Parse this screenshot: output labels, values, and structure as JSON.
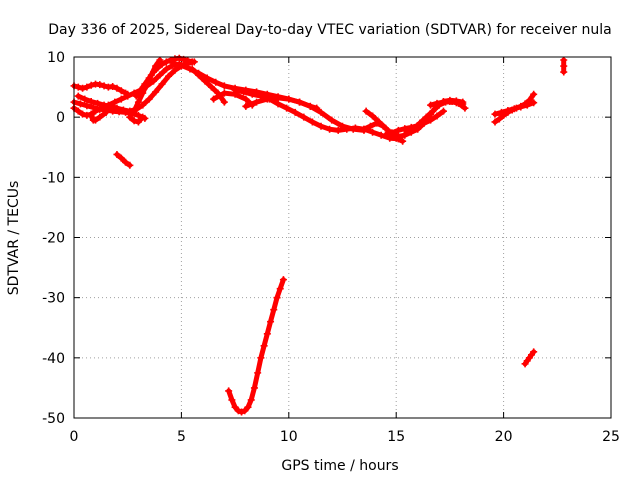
{
  "chart_data": {
    "type": "scatter",
    "title": "Day 336 of 2025, Sidereal Day-to-day VTEC variation (SDTVAR) for receiver nula",
    "xlabel": "GPS time / hours",
    "ylabel": "SDTVAR / TECUs",
    "xlim": [
      0,
      25
    ],
    "ylim": [
      -50,
      10
    ],
    "xticks": [
      0,
      5,
      10,
      15,
      20,
      25
    ],
    "yticks": [
      -50,
      -40,
      -30,
      -20,
      -10,
      0,
      10
    ],
    "grid": true,
    "legend": "none",
    "marker": "plus",
    "color": "#ff0000",
    "series": [
      {
        "name": "track-1",
        "x": [
          0.0,
          0.2,
          0.4,
          0.6,
          0.8,
          1.0,
          1.2,
          1.4,
          1.6,
          1.8,
          2.0,
          2.2,
          2.4,
          2.5
        ],
        "y": [
          5.2,
          5.0,
          4.8,
          5.0,
          5.3,
          5.5,
          5.4,
          5.2,
          5.0,
          5.1,
          4.8,
          4.4,
          4.0,
          3.8
        ]
      },
      {
        "name": "track-2",
        "x": [
          0.0,
          0.2,
          0.4,
          0.6,
          0.8,
          1.0,
          1.3,
          1.6,
          1.9,
          2.2,
          2.5,
          2.8,
          3.1,
          3.4,
          3.7,
          4.0,
          4.3,
          4.6,
          4.9,
          5.2
        ],
        "y": [
          1.5,
          1.0,
          0.5,
          0.3,
          0.5,
          1.0,
          1.5,
          2.0,
          2.5,
          3.0,
          3.5,
          4.0,
          4.5,
          5.2,
          6.0,
          7.0,
          8.0,
          8.6,
          8.8,
          8.5
        ]
      },
      {
        "name": "track-3",
        "x": [
          0.0,
          0.3,
          0.6,
          0.9,
          1.2,
          1.5,
          1.8,
          2.1,
          2.4,
          2.7,
          3.0,
          3.3
        ],
        "y": [
          2.5,
          2.2,
          1.9,
          1.6,
          1.3,
          1.2,
          1.0,
          0.9,
          0.8,
          0.6,
          0.3,
          -0.2
        ]
      },
      {
        "name": "track-4",
        "x": [
          0.2,
          0.5,
          0.8,
          1.1,
          1.4,
          1.7,
          2.0,
          2.3,
          2.6,
          2.9,
          3.2,
          3.5,
          3.8,
          4.1,
          4.4,
          4.7,
          5.0,
          5.3,
          5.6
        ],
        "y": [
          3.5,
          3.0,
          2.6,
          2.3,
          2.0,
          1.8,
          1.5,
          1.2,
          1.0,
          1.3,
          2.0,
          3.0,
          4.2,
          5.5,
          6.8,
          7.8,
          8.5,
          9.0,
          9.2
        ]
      },
      {
        "name": "track-5",
        "x": [
          0.8,
          0.9,
          1.0,
          1.2,
          1.5
        ],
        "y": [
          0.2,
          -0.5,
          -0.5,
          0.0,
          0.8
        ]
      },
      {
        "name": "track-6",
        "x": [
          2.9,
          3.1,
          3.3,
          3.5,
          3.7,
          3.9,
          4.1,
          4.3,
          4.5,
          4.7,
          4.9,
          5.1,
          5.3,
          5.5
        ],
        "y": [
          3.5,
          4.5,
          5.5,
          6.5,
          7.5,
          8.2,
          8.8,
          9.2,
          9.5,
          9.7,
          9.8,
          9.6,
          9.4,
          9.2
        ]
      },
      {
        "name": "track-7",
        "x": [
          2.8,
          3.0,
          3.2,
          3.4,
          3.6,
          3.8,
          4.0
        ],
        "y": [
          1.0,
          2.5,
          4.0,
          5.5,
          7.0,
          8.5,
          9.5
        ]
      },
      {
        "name": "track-8",
        "x": [
          4.6,
          5.0,
          5.4,
          5.8,
          6.2,
          6.6,
          7.0,
          7.5,
          8.0,
          8.5,
          9.0,
          9.5,
          10.0,
          10.5,
          11.0,
          11.3
        ],
        "y": [
          9.0,
          8.6,
          8.0,
          7.3,
          6.5,
          5.8,
          5.2,
          4.8,
          4.5,
          4.2,
          3.8,
          3.4,
          3.0,
          2.5,
          1.8,
          1.5
        ]
      },
      {
        "name": "track-9",
        "x": [
          5.5,
          5.8,
          6.1,
          6.4,
          6.7,
          7.0
        ],
        "y": [
          8.0,
          7.0,
          6.0,
          5.0,
          4.0,
          2.5
        ]
      },
      {
        "name": "track-10",
        "x": [
          8.0,
          8.5,
          9.0,
          9.5,
          10.0,
          10.5,
          11.0,
          11.5,
          12.0,
          12.5,
          13.0,
          13.5
        ],
        "y": [
          1.8,
          2.5,
          3.0,
          3.2,
          3.0,
          2.5,
          1.8,
          0.8,
          -0.5,
          -1.5,
          -2.0,
          -2.2
        ]
      },
      {
        "name": "track-11",
        "x": [
          7.5,
          7.9,
          8.3,
          8.7,
          9.1,
          9.5,
          9.9,
          10.3,
          10.7,
          11.1,
          11.5,
          11.9,
          12.3,
          12.7,
          13.1,
          13.5,
          13.9,
          14.3,
          14.7,
          15.1
        ],
        "y": [
          4.5,
          4.2,
          3.8,
          3.5,
          3.0,
          2.2,
          1.5,
          0.8,
          0.0,
          -0.8,
          -1.5,
          -2.0,
          -2.2,
          -2.0,
          -1.8,
          -2.0,
          -2.5,
          -3.0,
          -3.5,
          -3.6
        ]
      },
      {
        "name": "track-12",
        "x": [
          6.5,
          7.0,
          7.5,
          8.0,
          8.3
        ],
        "y": [
          3.0,
          4.0,
          3.8,
          3.0,
          2.0
        ]
      },
      {
        "name": "track-13",
        "x": [
          13.5,
          13.8,
          14.1,
          14.4,
          14.7,
          15.0,
          15.3
        ],
        "y": [
          -2.0,
          -1.5,
          -1.0,
          -1.5,
          -2.5,
          -3.5,
          -4.0
        ]
      },
      {
        "name": "track-14",
        "x": [
          13.6,
          13.9,
          14.2,
          14.5,
          14.8,
          15.1,
          15.4,
          15.7,
          16.0,
          16.3,
          16.6,
          16.9,
          17.2,
          17.5,
          17.8,
          18.1
        ],
        "y": [
          1.0,
          0.2,
          -0.8,
          -1.8,
          -2.8,
          -3.2,
          -3.0,
          -2.5,
          -2.0,
          -1.0,
          0.5,
          1.8,
          2.6,
          2.8,
          2.7,
          2.5
        ]
      },
      {
        "name": "track-15",
        "x": [
          14.5,
          14.8,
          15.1,
          15.4,
          15.7,
          16.0,
          16.3,
          16.6,
          16.9,
          17.2
        ],
        "y": [
          -3.0,
          -2.6,
          -2.2,
          -1.9,
          -1.7,
          -1.4,
          -1.0,
          -0.5,
          0.2,
          1.0
        ]
      },
      {
        "name": "track-16",
        "x": [
          15.5,
          15.8,
          16.1,
          16.4,
          16.7,
          17.0,
          17.3,
          17.6,
          17.9,
          18.2
        ],
        "y": [
          -2.5,
          -2.0,
          -1.0,
          0.0,
          1.0,
          2.0,
          2.5,
          2.6,
          2.3,
          1.5
        ]
      },
      {
        "name": "track-17",
        "x": [
          16.6,
          16.9,
          17.2,
          17.5,
          17.8,
          18.1
        ],
        "y": [
          2.0,
          2.3,
          2.5,
          2.6,
          2.4,
          2.2
        ]
      },
      {
        "name": "track-18",
        "x": [
          19.6,
          19.8,
          20.0,
          20.2,
          20.4,
          20.6,
          20.8,
          21.0,
          21.2,
          21.4
        ],
        "y": [
          -0.8,
          -0.3,
          0.3,
          0.8,
          1.2,
          1.5,
          1.8,
          2.2,
          2.8,
          3.8
        ]
      },
      {
        "name": "track-19",
        "x": [
          19.6,
          19.9,
          20.2,
          20.5,
          20.8,
          21.1,
          21.4
        ],
        "y": [
          0.5,
          0.8,
          1.1,
          1.4,
          1.7,
          2.0,
          2.4
        ]
      },
      {
        "name": "track-20",
        "x": [
          2.0,
          2.2,
          2.4,
          2.6
        ],
        "y": [
          -6.2,
          -6.8,
          -7.5,
          -8.0
        ]
      },
      {
        "name": "track-21",
        "x": [
          7.2,
          7.35,
          7.5,
          7.65,
          7.8,
          7.95,
          8.1,
          8.25,
          8.4,
          8.55,
          8.7,
          8.85,
          9.0,
          9.15,
          9.3,
          9.45,
          9.6,
          9.75
        ],
        "y": [
          -45.5,
          -47.0,
          -48.2,
          -48.8,
          -49.0,
          -48.8,
          -48.2,
          -47.0,
          -45.0,
          -42.5,
          -40.0,
          -38.0,
          -36.0,
          -34.0,
          -32.0,
          -30.0,
          -28.5,
          -27.0
        ]
      },
      {
        "name": "track-22",
        "x": [
          21.0,
          21.1,
          21.2,
          21.3,
          21.4
        ],
        "y": [
          -41.0,
          -40.5,
          -40.0,
          -39.5,
          -39.0
        ]
      },
      {
        "name": "track-23",
        "x": [
          22.8,
          22.8,
          22.8
        ],
        "y": [
          9.5,
          8.5,
          7.5
        ]
      },
      {
        "name": "track-24",
        "x": [
          2.6,
          2.8,
          3.0,
          3.2
        ],
        "y": [
          0.0,
          -0.6,
          -0.8,
          0.0
        ]
      }
    ]
  }
}
